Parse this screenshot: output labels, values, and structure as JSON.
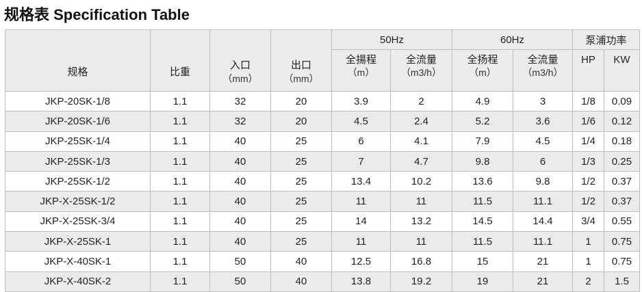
{
  "title": "规格表 Specification Table",
  "headers": {
    "model": "规格",
    "specific_gravity": "比重",
    "inlet": "入口",
    "inlet_unit": "（mm）",
    "outlet": "出口",
    "outlet_unit": "（mm）",
    "hz50": "50Hz",
    "hz60": "60Hz",
    "power": "泵浦功率",
    "head50": "全揚程",
    "head50_unit": "（m）",
    "flow50": "全流量",
    "flow50_unit": "（m3/h）",
    "head60": "全扬程",
    "head60_unit": "（m）",
    "flow60": "全流量",
    "flow60_unit": "（m3/h）",
    "hp": "HP",
    "kw": "KW"
  },
  "rows": [
    [
      "JKP-20SK-1/8",
      "1.1",
      "32",
      "20",
      "3.9",
      "2",
      "4.9",
      "3",
      "1/8",
      "0.09"
    ],
    [
      "JKP-20SK-1/6",
      "1.1",
      "32",
      "20",
      "4.5",
      "2.4",
      "5.2",
      "3.6",
      "1/6",
      "0.12"
    ],
    [
      "JKP-25SK-1/4",
      "1.1",
      "40",
      "25",
      "6",
      "4.1",
      "7.9",
      "4.5",
      "1/4",
      "0.18"
    ],
    [
      "JKP-25SK-1/3",
      "1.1",
      "40",
      "25",
      "7",
      "4.7",
      "9.8",
      "6",
      "1/3",
      "0.25"
    ],
    [
      "JKP-25SK-1/2",
      "1.1",
      "40",
      "25",
      "13.4",
      "10.2",
      "13.6",
      "9.8",
      "1/2",
      "0.37"
    ],
    [
      "JKP-X-25SK-1/2",
      "1.1",
      "40",
      "25",
      "11",
      "11",
      "11.5",
      "11.1",
      "1/2",
      "0.37"
    ],
    [
      "JKP-X-25SK-3/4",
      "1.1",
      "40",
      "25",
      "14",
      "13.2",
      "14.5",
      "14.4",
      "3/4",
      "0.55"
    ],
    [
      "JKP-X-25SK-1",
      "1.1",
      "40",
      "25",
      "11",
      "11",
      "11.5",
      "11.1",
      "1",
      "0.75"
    ],
    [
      "JKP-X-40SK-1",
      "1.1",
      "50",
      "40",
      "12.5",
      "16.8",
      "15",
      "21",
      "1",
      "0.75"
    ],
    [
      "JKP-X-40SK-2",
      "1.1",
      "50",
      "40",
      "13.8",
      "19.2",
      "19",
      "21",
      "2",
      "1.5"
    ]
  ]
}
